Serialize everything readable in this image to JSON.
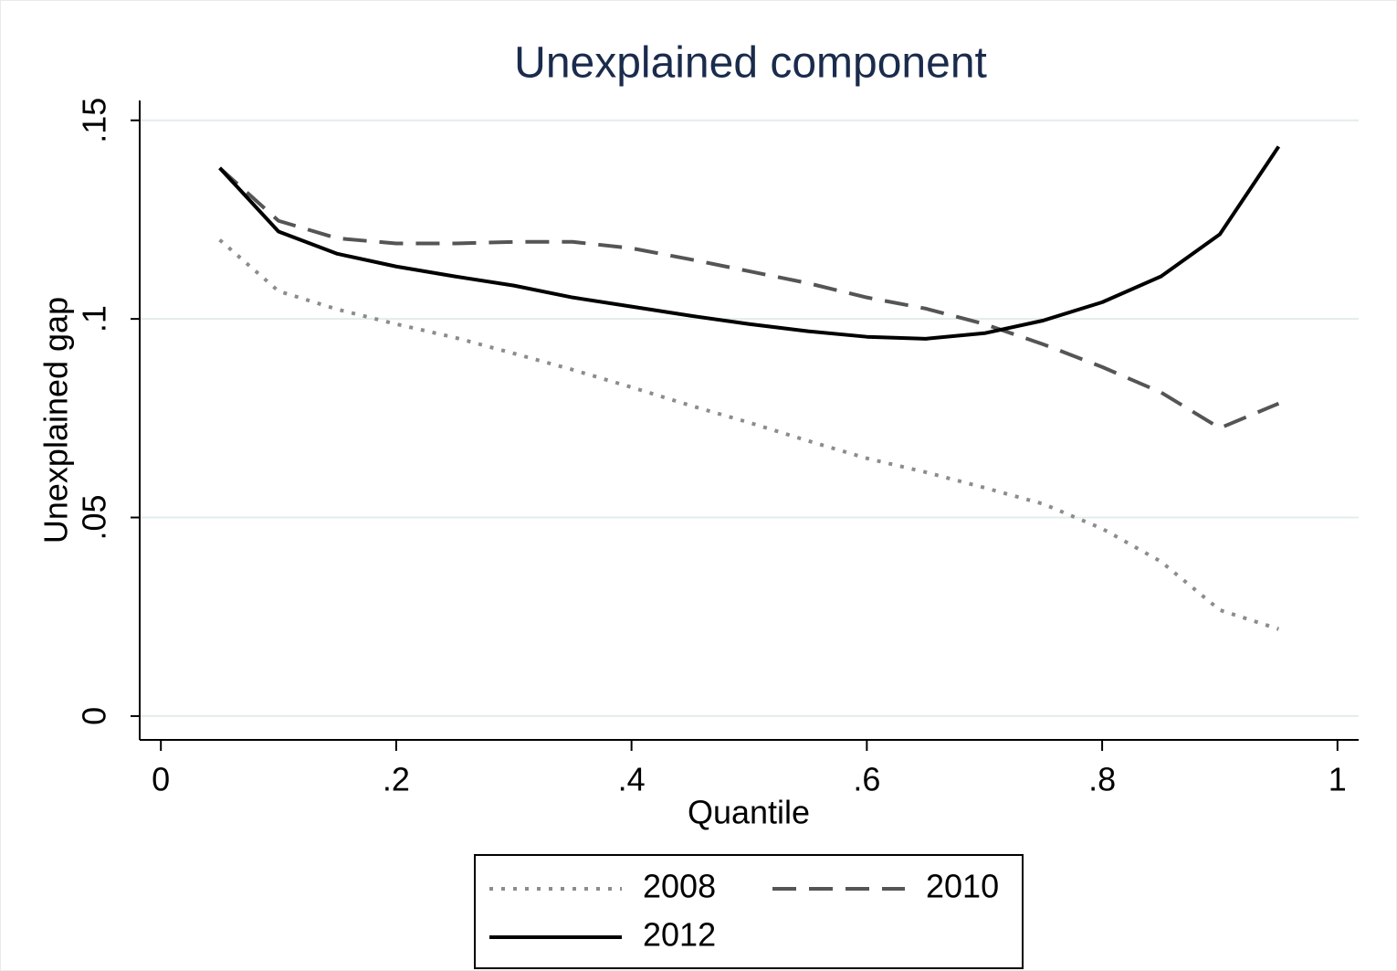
{
  "chart_data": {
    "type": "line",
    "title": "Unexplained component",
    "xlabel": "Quantile",
    "ylabel": "Unexplained gap",
    "x": [
      0.05,
      0.1,
      0.15,
      0.2,
      0.25,
      0.3,
      0.35,
      0.4,
      0.45,
      0.5,
      0.55,
      0.6,
      0.65,
      0.7,
      0.75,
      0.8,
      0.85,
      0.9,
      0.95
    ],
    "series": [
      {
        "name": "2008",
        "color": "#8c8c8c",
        "style": "dotted",
        "values": [
          0.1199,
          0.107,
          0.1024,
          0.0987,
          0.0953,
          0.0913,
          0.0872,
          0.0828,
          0.0782,
          0.0739,
          0.0693,
          0.0649,
          0.0614,
          0.0575,
          0.0534,
          0.0472,
          0.0389,
          0.0267,
          0.0219
        ]
      },
      {
        "name": "2010",
        "color": "#555555",
        "style": "dashed",
        "values": [
          0.138,
          0.1247,
          0.1203,
          0.119,
          0.119,
          0.1194,
          0.1194,
          0.1178,
          0.115,
          0.112,
          0.109,
          0.1054,
          0.1026,
          0.0987,
          0.0936,
          0.0879,
          0.0815,
          0.0725,
          0.0787
        ]
      },
      {
        "name": "2012",
        "color": "#000000",
        "style": "solid",
        "values": [
          0.138,
          0.122,
          0.1164,
          0.1132,
          0.1107,
          0.1084,
          0.1054,
          0.1031,
          0.1008,
          0.0987,
          0.0969,
          0.0955,
          0.095,
          0.0964,
          0.0996,
          0.1042,
          0.1107,
          0.1213,
          0.1434
        ]
      }
    ],
    "xlim": [
      -0.018,
      1.018
    ],
    "ylim": [
      -0.006,
      0.155
    ],
    "xticks": [
      0,
      {
        "value": 0.2,
        "label": ".2"
      },
      {
        "value": 0.4,
        "label": ".4"
      },
      {
        "value": 0.6,
        "label": ".6"
      },
      {
        "value": 0.8,
        "label": ".8"
      },
      1
    ],
    "yticks": [
      0,
      {
        "value": 0.05,
        "label": ".05"
      },
      {
        "value": 0.1,
        "label": ".1"
      },
      {
        "value": 0.15,
        "label": ".15"
      }
    ],
    "grid": true
  }
}
